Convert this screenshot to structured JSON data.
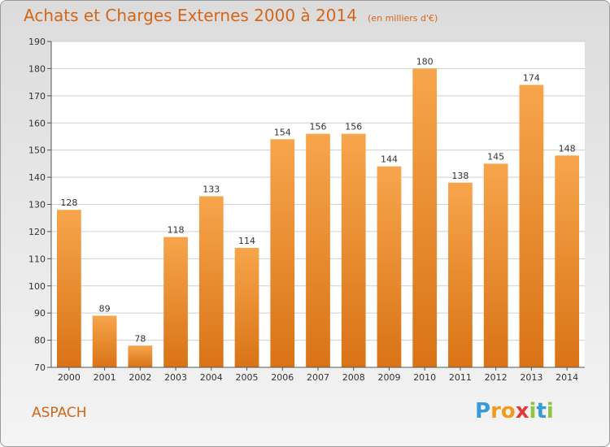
{
  "header": {
    "title": "Achats et Charges Externes 2000 à 2014",
    "unit": "(en milliers d'€)"
  },
  "footer": {
    "commune": "ASPACH",
    "logo_letters": [
      "P",
      "r",
      "o",
      "x",
      "i",
      "t",
      "i"
    ],
    "logo_colors": [
      "#3a9ad9",
      "#f29a1f",
      "#f29a1f",
      "#e23b3b",
      "#8dc63f",
      "#3a9ad9",
      "#8dc63f"
    ]
  },
  "colors": {
    "bar_top": "#f7a54c",
    "bar_bottom": "#d97316",
    "title": "#d4661a",
    "grid": "#cfcfcf"
  },
  "chart_data": {
    "type": "bar",
    "categories": [
      "2000",
      "2001",
      "2002",
      "2003",
      "2004",
      "2005",
      "2006",
      "2007",
      "2008",
      "2009",
      "2010",
      "2011",
      "2012",
      "2013",
      "2014"
    ],
    "values": [
      128,
      89,
      78,
      118,
      133,
      114,
      154,
      156,
      156,
      144,
      180,
      138,
      145,
      174,
      148
    ],
    "ylim": [
      70,
      190
    ],
    "yticks": [
      70,
      80,
      90,
      100,
      110,
      120,
      130,
      140,
      150,
      160,
      170,
      180,
      190
    ],
    "grid": true
  }
}
